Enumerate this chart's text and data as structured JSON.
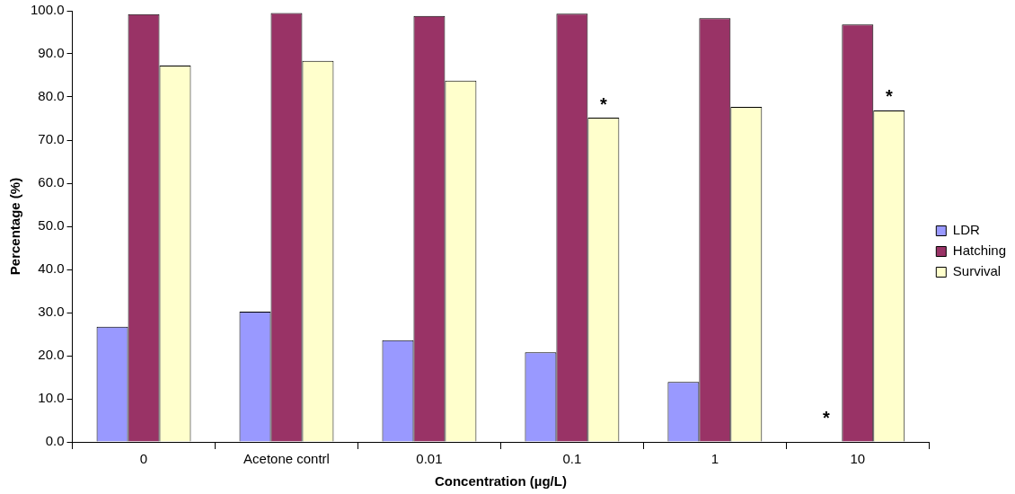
{
  "chart_data": {
    "type": "bar",
    "xlabel": "Concentration (µg/L)",
    "ylabel": "Percentage (%)",
    "categories": [
      "0",
      "Acetone contrl",
      "0.01",
      "0.1",
      "1",
      "10"
    ],
    "series": [
      {
        "name": "LDR",
        "color": "#9999ff",
        "values": [
          26.7,
          30.2,
          23.6,
          20.8,
          13.9,
          0
        ]
      },
      {
        "name": "Hatching",
        "color": "#993366",
        "values": [
          99.2,
          99.5,
          98.8,
          99.3,
          98.3,
          96.8
        ]
      },
      {
        "name": "Survival",
        "color": "#ffffcc",
        "values": [
          87.3,
          88.4,
          83.8,
          75.2,
          77.7,
          76.9
        ],
        "value_labels": [
          null,
          null,
          null,
          "*",
          null,
          "*"
        ]
      }
    ],
    "annotations": [
      {
        "text": "*",
        "x": "10",
        "y": 0
      }
    ],
    "ylim": [
      0,
      100
    ],
    "yticks": [
      {
        "value": 0,
        "label": "0.0"
      },
      {
        "value": 10,
        "label": "10.0"
      },
      {
        "value": 20,
        "label": "20.0"
      },
      {
        "value": 30,
        "label": "30.0"
      },
      {
        "value": 40,
        "label": "40.0"
      },
      {
        "value": 50,
        "label": "50.0"
      },
      {
        "value": 60,
        "label": "60.0"
      },
      {
        "value": 70,
        "label": "70.0"
      },
      {
        "value": 80,
        "label": "80.0"
      },
      {
        "value": 90,
        "label": "90.0"
      },
      {
        "value": 100,
        "label": "100.0"
      }
    ],
    "grid": false,
    "legend": "right"
  }
}
